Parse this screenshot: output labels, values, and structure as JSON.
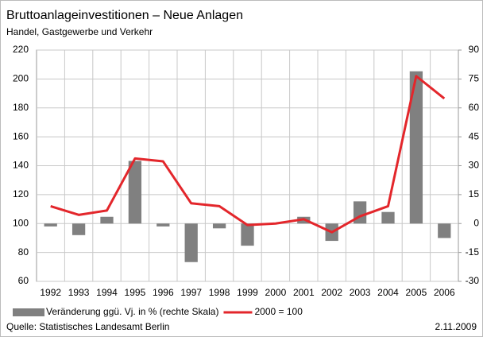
{
  "chart_data": {
    "type": "bar",
    "title": "Bruttoanlageinvestitionen – Neue Anlagen",
    "subtitle": "Handel, Gastgewerbe und Verkehr",
    "categories": [
      "1992",
      "1993",
      "1994",
      "1995",
      "1996",
      "1997",
      "1998",
      "1999",
      "2000",
      "2001",
      "2002",
      "2003",
      "2004",
      "2005",
      "2006"
    ],
    "series": [
      {
        "name": "Veränderung ggü. Vj. in % (rechte Skala)",
        "type": "bar",
        "axis": "y2",
        "color": "#808080",
        "values": [
          -1.5,
          -6,
          3.5,
          32.5,
          -1.5,
          -20,
          -2.5,
          -11.5,
          0,
          3.5,
          -9,
          11.5,
          6,
          79,
          -7.5
        ]
      },
      {
        "name": "2000 = 100",
        "type": "line",
        "color": "#e3262b",
        "values": [
          112,
          106,
          109,
          145,
          143,
          114,
          112,
          99,
          100,
          103,
          94,
          105,
          112,
          202,
          186.5
        ]
      }
    ],
    "ylim": [
      60,
      220
    ],
    "yticks": [
      60,
      80,
      100,
      120,
      140,
      160,
      180,
      200,
      220
    ],
    "y2lim": [
      -30,
      90
    ],
    "y2ticks": [
      -30,
      -15,
      0,
      15,
      30,
      45,
      60,
      75,
      90
    ],
    "grid": true,
    "source": "Quelle: Statistisches Landesamt Berlin",
    "date": "2.11.2009"
  }
}
